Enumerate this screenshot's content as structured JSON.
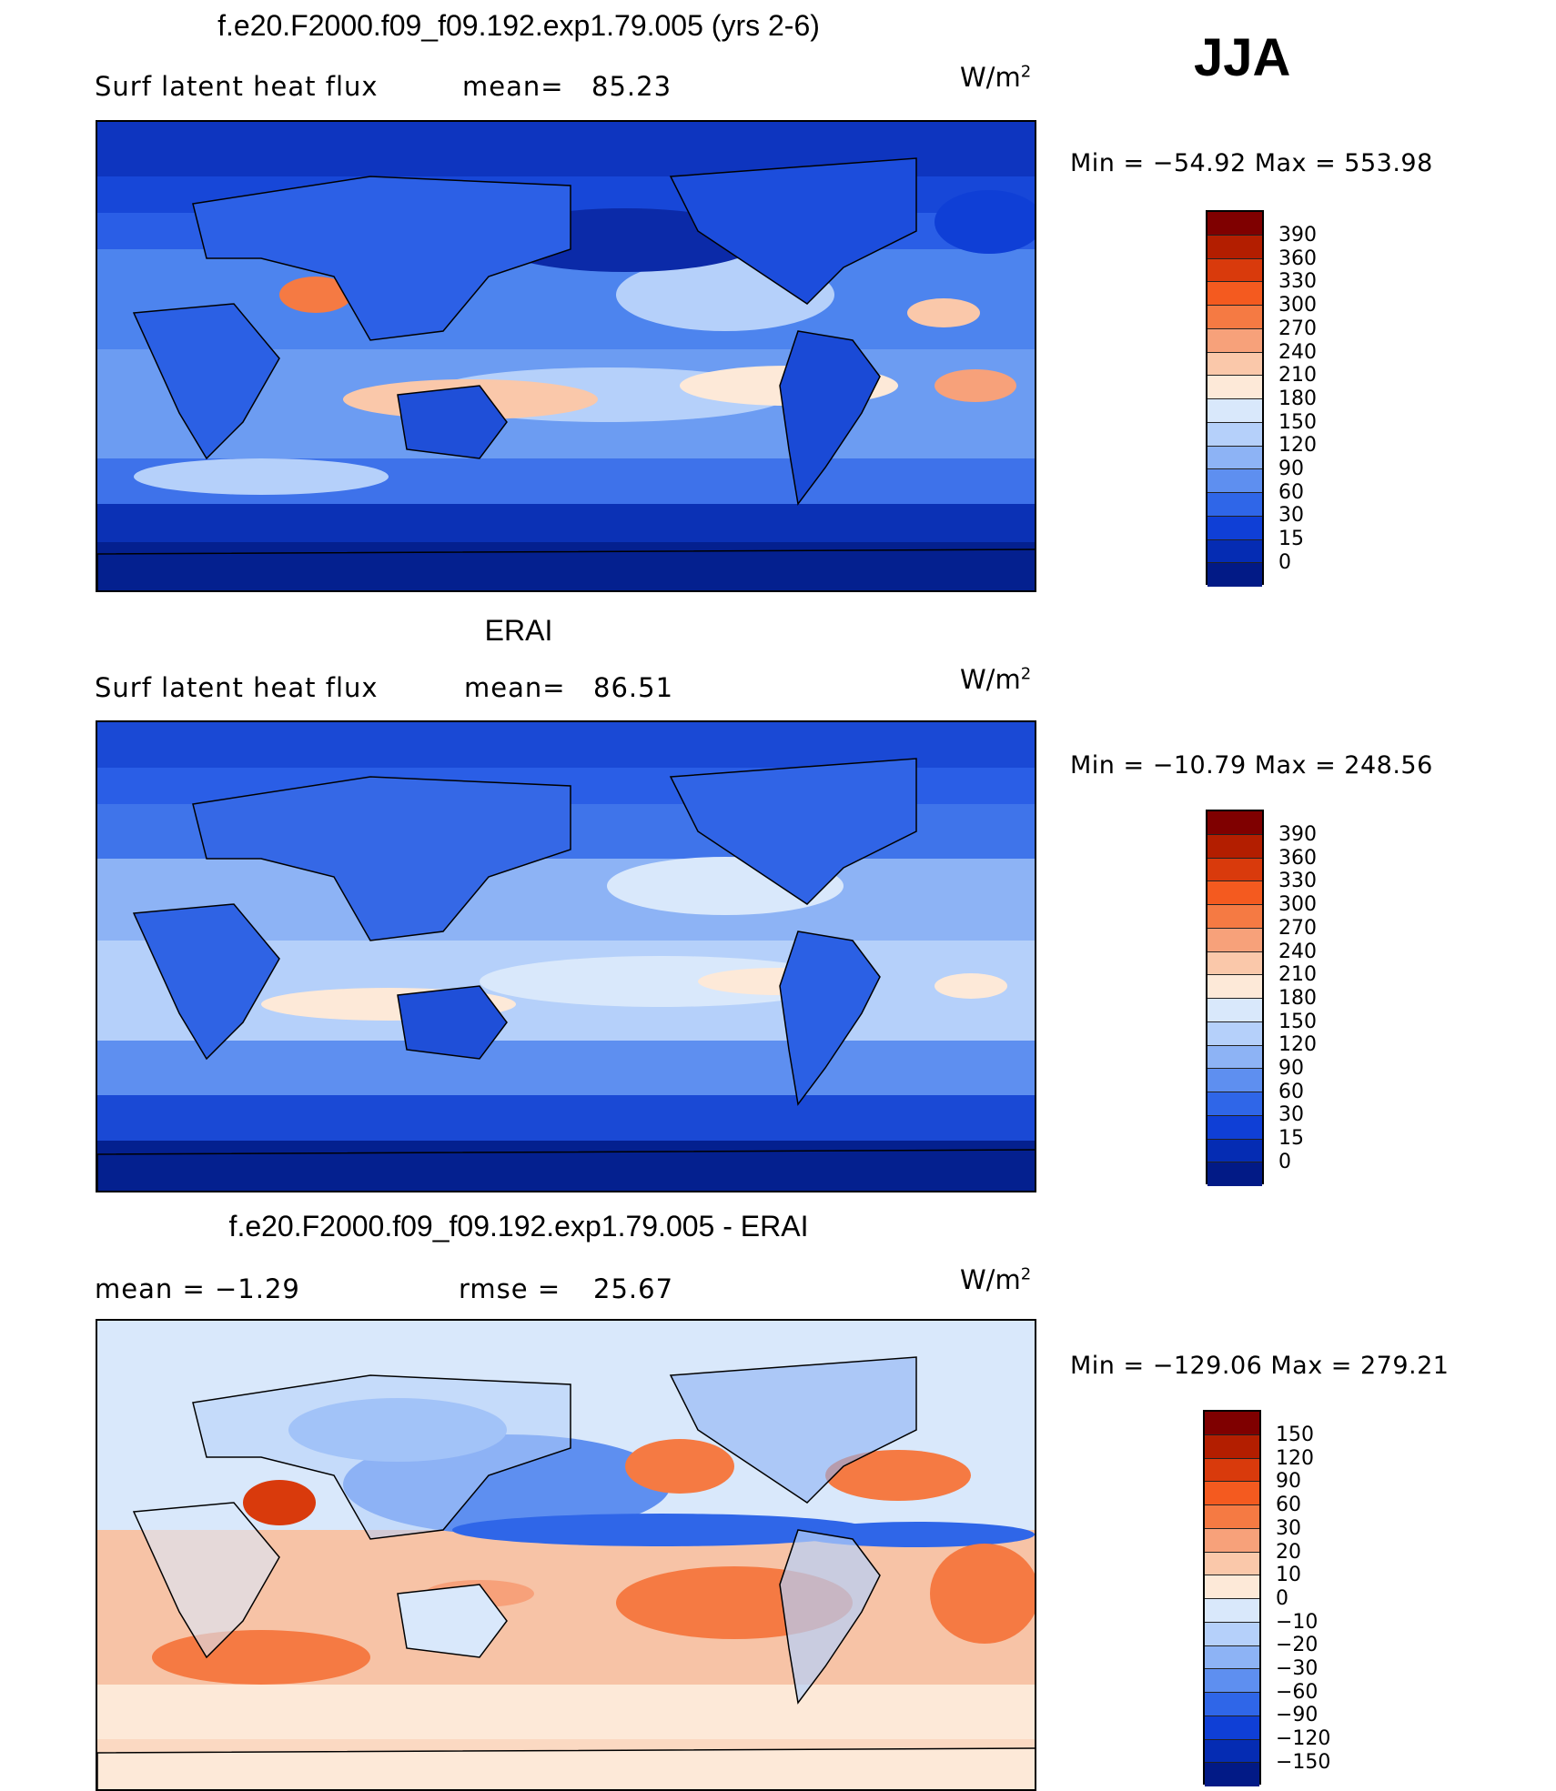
{
  "season": "JJA",
  "panels": [
    {
      "title": "f.e20.F2000.f09_f09.192.exp1.79.005 (yrs 2-6)",
      "left_label": "Surf  latent  heat  flux",
      "mid_label": "mean=",
      "mid_value": "85.23",
      "units": "W/m",
      "units_sup": "2",
      "min_max": "Min  =  −54.92  Max  =  553.98",
      "colorbar": {
        "labels": [
          "390",
          "360",
          "330",
          "300",
          "270",
          "240",
          "210",
          "180",
          "150",
          "120",
          "90",
          "60",
          "30",
          "15",
          "0"
        ],
        "colors": [
          "#7f0000",
          "#b31e00",
          "#d93a0c",
          "#f45a1f",
          "#f57a43",
          "#f7a17a",
          "#fac8aa",
          "#fde9d8",
          "#d9e8fb",
          "#b5d0fa",
          "#8db3f5",
          "#5e8ff0",
          "#2f66e8",
          "#0f3fd6",
          "#052cb3",
          "#021a86"
        ]
      },
      "chart_data": {
        "type": "heatmap",
        "field": "Surface latent heat flux",
        "model": "f.e20.F2000.f09_f09.192.exp1.79.005",
        "years": "yrs 2-6",
        "mean": 85.23,
        "min": -54.92,
        "max": 553.98,
        "units": "W/m2",
        "levels": [
          0,
          15,
          30,
          60,
          90,
          120,
          150,
          180,
          210,
          240,
          270,
          300,
          330,
          360,
          390
        ]
      }
    },
    {
      "title": "ERAI",
      "left_label": "Surf  latent  heat  flux",
      "mid_label": "mean=",
      "mid_value": "86.51",
      "units": "W/m",
      "units_sup": "2",
      "min_max": "Min  =  −10.79  Max  =  248.56",
      "colorbar": {
        "labels": [
          "390",
          "360",
          "330",
          "300",
          "270",
          "240",
          "210",
          "180",
          "150",
          "120",
          "90",
          "60",
          "30",
          "15",
          "0"
        ],
        "colors": [
          "#7f0000",
          "#b31e00",
          "#d93a0c",
          "#f45a1f",
          "#f57a43",
          "#f7a17a",
          "#fac8aa",
          "#fde9d8",
          "#d9e8fb",
          "#b5d0fa",
          "#8db3f5",
          "#5e8ff0",
          "#2f66e8",
          "#0f3fd6",
          "#052cb3",
          "#021a86"
        ]
      },
      "chart_data": {
        "type": "heatmap",
        "field": "Surface latent heat flux",
        "model": "ERAI",
        "mean": 86.51,
        "min": -10.79,
        "max": 248.56,
        "units": "W/m2",
        "levels": [
          0,
          15,
          30,
          60,
          90,
          120,
          150,
          180,
          210,
          240,
          270,
          300,
          330,
          360,
          390
        ]
      }
    },
    {
      "title": "f.e20.F2000.f09_f09.192.exp1.79.005 - ERAI",
      "left_label": "mean  =    −1.29",
      "mid_label": "rmse  =",
      "mid_value": "25.67",
      "units": "W/m",
      "units_sup": "2",
      "min_max": "Min  =  −129.06  Max  =  279.21",
      "colorbar": {
        "labels": [
          "150",
          "120",
          "90",
          "60",
          "30",
          "20",
          "10",
          "0",
          "−10",
          "−20",
          "−30",
          "−60",
          "−90",
          "−120",
          "−150"
        ],
        "colors": [
          "#7f0000",
          "#b31e00",
          "#d93a0c",
          "#f45a1f",
          "#f57a43",
          "#f7a17a",
          "#fac8aa",
          "#fde9d8",
          "#d9e8fb",
          "#b5d0fa",
          "#8db3f5",
          "#5e8ff0",
          "#2f66e8",
          "#0f3fd6",
          "#052cb3",
          "#021a86"
        ]
      },
      "chart_data": {
        "type": "heatmap",
        "field": "Surface latent heat flux difference",
        "model": "f.e20.F2000.f09_f09.192.exp1.79.005 - ERAI",
        "mean": -1.29,
        "rmse": 25.67,
        "min": -129.06,
        "max": 279.21,
        "units": "W/m2",
        "levels": [
          -150,
          -120,
          -90,
          -60,
          -30,
          -20,
          -10,
          0,
          10,
          20,
          30,
          60,
          90,
          120,
          150
        ]
      }
    }
  ]
}
